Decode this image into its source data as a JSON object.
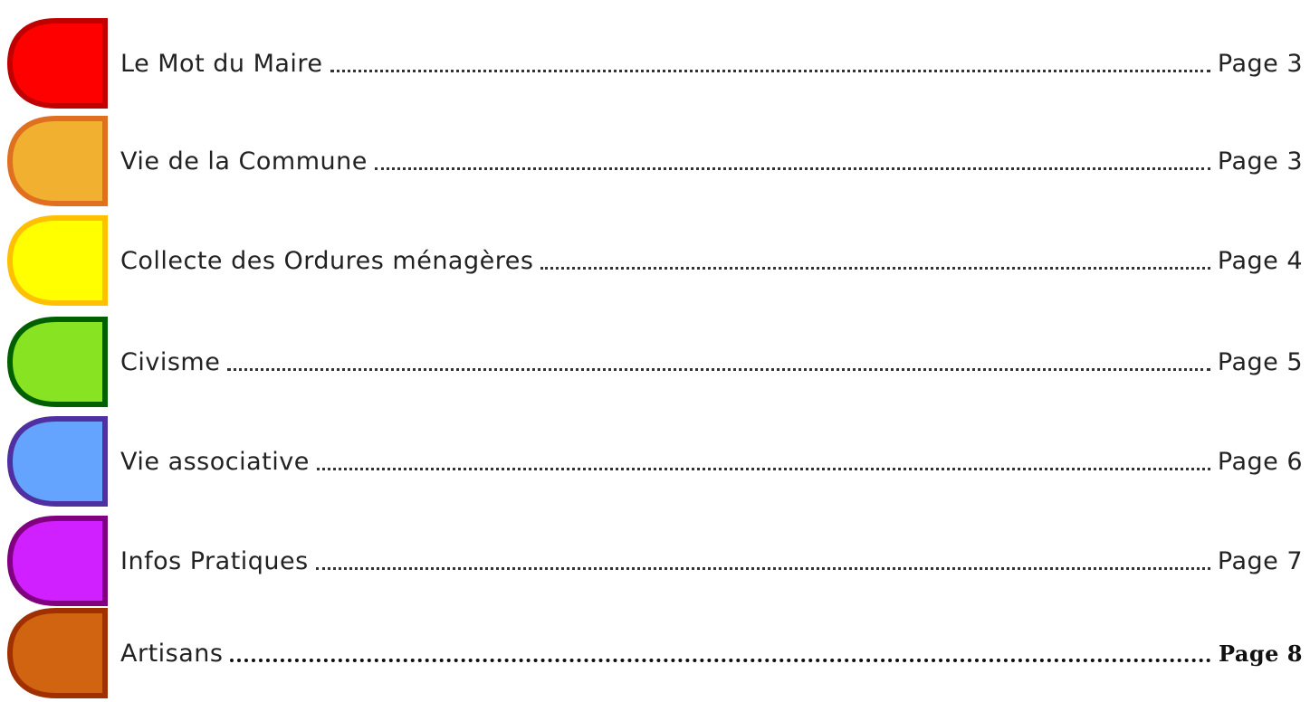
{
  "entries": [
    {
      "title": "Le Mot du Maire",
      "page": "Page 3"
    },
    {
      "title": "Vie de la Commune",
      "page": "Page 3"
    },
    {
      "title": "Collecte des Ordures ménagères",
      "page": "Page 4"
    },
    {
      "title": "Civisme",
      "page": "Page 5"
    },
    {
      "title": "Vie associative",
      "page": "Page 6"
    },
    {
      "title": "Infos Pratiques",
      "page": "Page 7"
    },
    {
      "title": "Artisans",
      "page": "Page 8"
    }
  ]
}
